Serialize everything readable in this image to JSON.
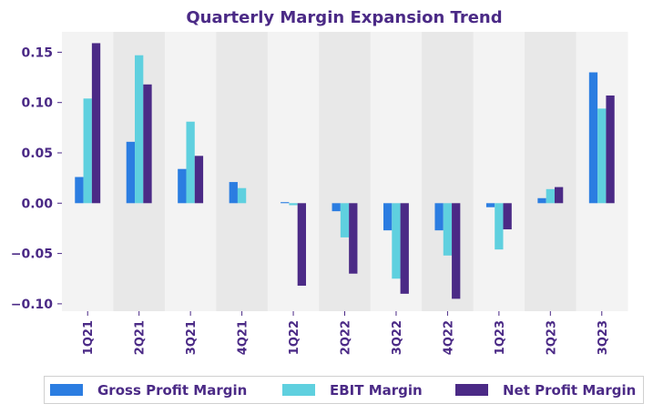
{
  "chart_data": {
    "type": "bar",
    "title": "Quarterly Margin Expansion Trend",
    "xlabel": "",
    "ylabel": "",
    "categories": [
      "1Q21",
      "2Q21",
      "3Q21",
      "4Q21",
      "1Q22",
      "2Q22",
      "3Q22",
      "4Q22",
      "1Q23",
      "2Q23",
      "3Q23"
    ],
    "series": [
      {
        "name": "Gross Profit Margin",
        "color": "#2b7de1",
        "values": [
          0.026,
          0.061,
          0.034,
          0.021,
          0.001,
          -0.008,
          -0.027,
          -0.027,
          -0.004,
          0.005,
          0.13
        ]
      },
      {
        "name": "EBIT Margin",
        "color": "#5fd0df",
        "values": [
          0.104,
          0.147,
          0.081,
          0.015,
          -0.002,
          -0.034,
          -0.075,
          -0.052,
          -0.046,
          0.014,
          0.094
        ]
      },
      {
        "name": "Net Profit Margin",
        "color": "#4b2a86",
        "values": [
          0.159,
          0.118,
          0.047,
          0.0,
          -0.082,
          -0.07,
          -0.09,
          -0.095,
          -0.026,
          0.016,
          0.107
        ]
      }
    ],
    "ylim": [
      -0.106,
      0.172
    ],
    "yticks": [
      0.15,
      0.1,
      0.05,
      0.0,
      -0.05,
      -0.1
    ],
    "ytick_labels": [
      "0.15",
      "0.10",
      "0.05",
      "0.00",
      "−0.05",
      "−0.10"
    ],
    "grid": false,
    "background_bands": [
      "#f3f3f3",
      "#e8e8e8"
    ],
    "legend_position": "bottom"
  },
  "legend": {
    "items": [
      {
        "label": "Gross Profit Margin",
        "color": "#2b7de1"
      },
      {
        "label": "EBIT Margin",
        "color": "#5fd0df"
      },
      {
        "label": "Net Profit Margin",
        "color": "#4b2a86"
      }
    ]
  },
  "text_color": "#4b2a86"
}
